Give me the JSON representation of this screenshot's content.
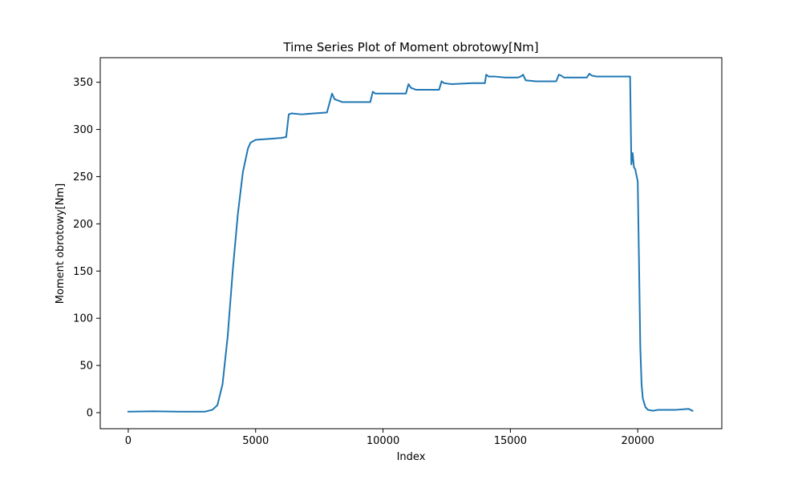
{
  "chart_data": {
    "type": "line",
    "title": "Time Series Plot of Moment obrotowy[Nm]",
    "xlabel": "Index",
    "ylabel": "Moment obrotowy[Nm]",
    "xlim": [
      -1100,
      23300
    ],
    "ylim": [
      -17,
      376
    ],
    "xticks": [
      0,
      5000,
      10000,
      15000,
      20000
    ],
    "xtick_labels": [
      "0",
      "5000",
      "10000",
      "15000",
      "20000"
    ],
    "yticks": [
      0,
      50,
      100,
      150,
      200,
      250,
      300,
      350
    ],
    "ytick_labels": [
      "0",
      "50",
      "100",
      "150",
      "200",
      "250",
      "300",
      "350"
    ],
    "grid": false,
    "series": [
      {
        "name": "",
        "color": "#1f77b4",
        "x": [
          0,
          1000,
          2000,
          3000,
          3300,
          3500,
          3700,
          3900,
          4100,
          4300,
          4500,
          4700,
          4800,
          5000,
          5500,
          6000,
          6200,
          6300,
          6400,
          6800,
          7300,
          7800,
          7900,
          8000,
          8100,
          8400,
          9000,
          9500,
          9600,
          9700,
          9800,
          10000,
          10500,
          10900,
          11000,
          11100,
          11300,
          11700,
          12200,
          12300,
          12400,
          12700,
          13500,
          14000,
          14050,
          14150,
          14400,
          14800,
          15300,
          15400,
          15500,
          15600,
          16000,
          16500,
          16800,
          16900,
          17000,
          17100,
          17500,
          18000,
          18100,
          18200,
          18400,
          18800,
          19200,
          19700,
          19750,
          19800,
          19850,
          19900,
          20000,
          20050,
          20100,
          20150,
          20200,
          20300,
          20400,
          20600,
          20800,
          21000,
          21500,
          22000,
          22150
        ],
        "y": [
          1,
          1.5,
          1,
          1,
          3,
          8,
          30,
          80,
          150,
          210,
          255,
          280,
          286,
          289,
          290,
          291,
          292,
          316,
          317,
          316,
          317,
          318,
          328,
          338,
          332,
          329,
          329,
          329,
          340,
          338,
          338,
          338,
          338,
          338,
          348,
          344,
          342,
          342,
          342,
          351,
          349,
          348,
          349,
          349,
          358,
          356,
          356,
          355,
          355,
          356,
          358,
          352,
          351,
          351,
          351,
          358,
          357,
          355,
          355,
          355,
          359,
          357,
          356,
          356,
          356,
          356,
          263,
          275,
          260,
          258,
          245,
          160,
          70,
          30,
          15,
          6,
          3,
          2,
          3,
          3,
          3,
          4,
          2
        ]
      }
    ]
  }
}
